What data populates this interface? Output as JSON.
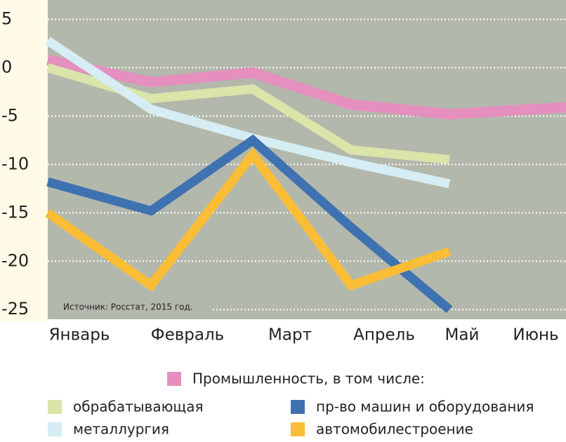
{
  "chart_data": {
    "type": "line",
    "categories": [
      "Январь",
      "Февраль",
      "Март",
      "Апрель",
      "Май",
      "Июнь"
    ],
    "series": [
      {
        "name": "Промышленность, в том числе:",
        "color": "#e58fbf",
        "values": [
          0.8,
          -1.5,
          -0.5,
          -3.8,
          -4.8,
          -4.1
        ]
      },
      {
        "name": "обрабатывающая",
        "color": "#d9e5a9",
        "values": [
          0,
          -3.2,
          -2.2,
          -8.5,
          -9.5,
          null
        ]
      },
      {
        "name": "металлургия",
        "color": "#d5edf3",
        "values": [
          2.8,
          -4.3,
          -7.3,
          -9.8,
          -12,
          null
        ]
      },
      {
        "name": "пр-во машин и оборудования",
        "color": "#3f72b0",
        "values": [
          -11.8,
          -14.8,
          -7.5,
          -16.5,
          -25,
          null
        ]
      },
      {
        "name": "автомобилестроение",
        "color": "#fbbd35",
        "values": [
          -15,
          -22.5,
          -9,
          -22.5,
          -19,
          null
        ]
      }
    ],
    "ylim": [
      -26,
      7
    ],
    "yticks": [
      5,
      0,
      -5,
      -10,
      -15,
      -20,
      -25
    ],
    "grid": true,
    "annotation": "Источник: Росстат, 2015 год."
  }
}
